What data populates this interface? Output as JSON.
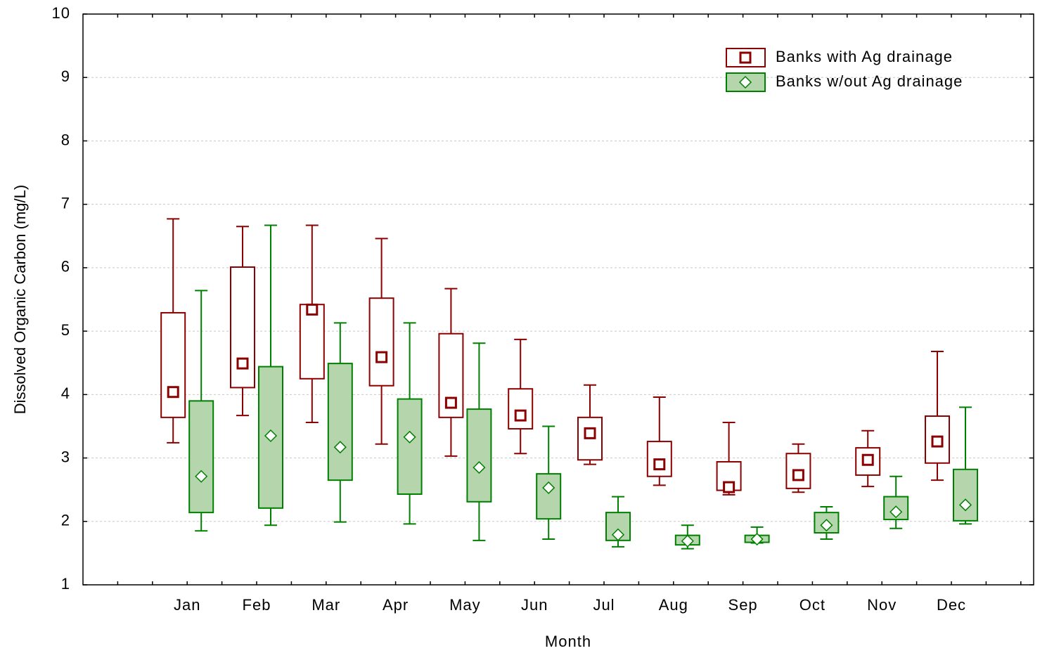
{
  "chart_data": {
    "type": "box",
    "x_label": "Month",
    "y_label": "Dissolved Organic Carbon (mg/L)",
    "categories": [
      "Jan",
      "Feb",
      "Mar",
      "Apr",
      "May",
      "Jun",
      "Jul",
      "Aug",
      "Sep",
      "Oct",
      "Nov",
      "Dec"
    ],
    "ylim": [
      1,
      10
    ],
    "yticks": [
      1,
      2,
      3,
      4,
      5,
      6,
      7,
      8,
      9,
      10
    ],
    "grid": true,
    "legend": "upper right",
    "series": [
      {
        "name": "Banks with Ag drainage",
        "color": "#8b0000",
        "fill": "#ffffff",
        "marker": "square",
        "whisker_low": [
          3.24,
          3.67,
          3.56,
          3.22,
          3.03,
          3.07,
          2.9,
          2.57,
          2.42,
          2.46,
          2.55,
          2.65
        ],
        "box_low": [
          3.64,
          4.11,
          4.25,
          4.14,
          3.64,
          3.46,
          2.97,
          2.71,
          2.49,
          2.52,
          2.73,
          2.92
        ],
        "mean": [
          4.04,
          4.49,
          5.34,
          4.59,
          3.87,
          3.67,
          3.39,
          2.9,
          2.54,
          2.73,
          2.97,
          3.26
        ],
        "box_high": [
          5.29,
          6.01,
          5.42,
          5.52,
          4.96,
          4.09,
          3.64,
          3.26,
          2.94,
          3.07,
          3.16,
          3.66
        ],
        "whisker_high": [
          6.77,
          6.65,
          6.67,
          6.46,
          5.67,
          4.87,
          4.15,
          3.96,
          3.56,
          3.22,
          3.43,
          4.68
        ]
      },
      {
        "name": "Banks w/out Ag drainage",
        "color": "#008000",
        "fill": "#b5d6ad",
        "marker": "diamond",
        "whisker_low": [
          1.85,
          1.94,
          1.99,
          1.96,
          1.7,
          1.72,
          1.6,
          1.57,
          1.66,
          1.72,
          1.89,
          1.96
        ],
        "box_low": [
          2.14,
          2.21,
          2.65,
          2.43,
          2.31,
          2.04,
          1.7,
          1.63,
          1.67,
          1.82,
          2.03,
          2.01
        ],
        "mean": [
          2.71,
          3.35,
          3.17,
          3.33,
          2.85,
          2.53,
          1.79,
          1.69,
          1.72,
          1.94,
          2.15,
          2.26
        ],
        "box_high": [
          3.9,
          4.44,
          4.49,
          3.93,
          3.77,
          2.75,
          2.14,
          1.78,
          1.78,
          2.14,
          2.39,
          2.82
        ],
        "whisker_high": [
          5.64,
          6.67,
          5.13,
          5.13,
          4.81,
          3.5,
          2.39,
          1.94,
          1.91,
          2.23,
          2.71,
          3.8
        ]
      }
    ]
  }
}
